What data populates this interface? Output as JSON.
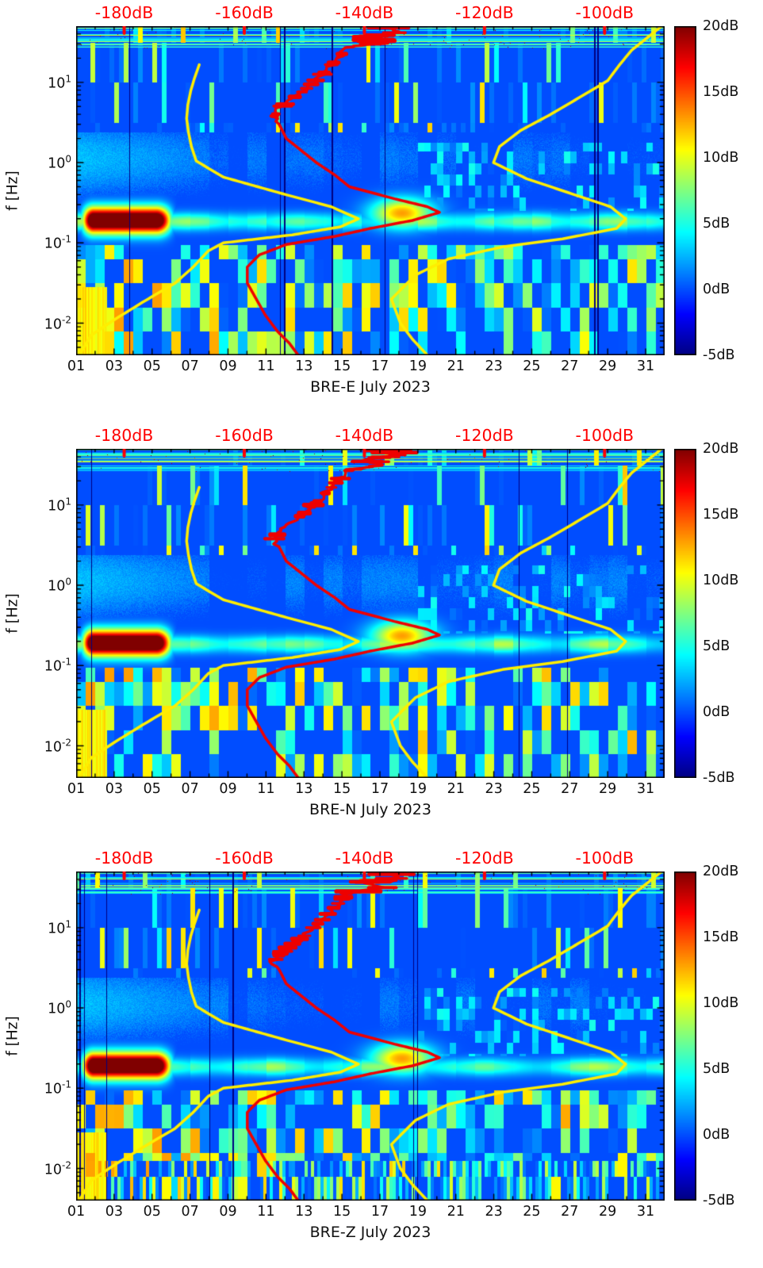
{
  "page": {
    "background": "#ffffff"
  },
  "chart_data": {
    "type": "heatmap",
    "panels": [
      {
        "xlabel": "BRE-E July 2023"
      },
      {
        "xlabel": "BRE-N July 2023"
      },
      {
        "xlabel": "BRE-Z July 2023"
      }
    ],
    "x_axis": {
      "tick_labels": [
        "01",
        "03",
        "05",
        "07",
        "09",
        "11",
        "13",
        "15",
        "17",
        "19",
        "21",
        "23",
        "25",
        "27",
        "29",
        "31"
      ],
      "tick_days": [
        1,
        3,
        5,
        7,
        9,
        11,
        13,
        15,
        17,
        19,
        21,
        23,
        25,
        27,
        29,
        31
      ],
      "domain_days": [
        1,
        32
      ]
    },
    "y_axis": {
      "label": "f [Hz]",
      "scale": "log10",
      "tick_labels": [
        "10^1",
        "10^0",
        "10^-1",
        "10^-2"
      ],
      "tick_log10": [
        1,
        0,
        -1,
        -2
      ],
      "domain_log10": [
        1.7,
        -2.4
      ]
    },
    "top_axis": {
      "color": "#ff0000",
      "tick_labels": [
        "-180dB",
        "-160dB",
        "-140dB",
        "-120dB",
        "-100dB"
      ],
      "tick_db": [
        -180,
        -160,
        -140,
        -120,
        -100
      ],
      "domain_db": [
        -188,
        -90
      ]
    },
    "colorbar": {
      "colormap": "jet",
      "tick_labels": [
        "20dB",
        "15dB",
        "10dB",
        "5dB",
        "0dB",
        "-5dB"
      ],
      "tick_db": [
        20,
        15,
        10,
        5,
        0,
        -5
      ],
      "domain_db": [
        20,
        -5
      ]
    },
    "series": [
      {
        "name": "median-psd",
        "color": "#ee0000",
        "points": [
          [
            -137,
            1.7
          ],
          [
            -134,
            1.63
          ],
          [
            -140,
            1.56
          ],
          [
            -137,
            1.5
          ],
          [
            -143,
            1.43
          ],
          [
            -144,
            1.33
          ],
          [
            -145.5,
            1.22
          ],
          [
            -147,
            1.1
          ],
          [
            -148.5,
            1.0
          ],
          [
            -150,
            0.9
          ],
          [
            -152,
            0.8
          ],
          [
            -154,
            0.68
          ],
          [
            -155,
            0.58
          ],
          [
            -154,
            0.45
          ],
          [
            -153,
            0.3
          ],
          [
            -150.5,
            0.15
          ],
          [
            -148,
            0.0
          ],
          [
            -145,
            -0.15
          ],
          [
            -142.5,
            -0.3
          ],
          [
            -135,
            -0.45
          ],
          [
            -129.5,
            -0.55
          ],
          [
            -127.5,
            -0.62
          ],
          [
            -132,
            -0.72
          ],
          [
            -139,
            -0.82
          ],
          [
            -145,
            -0.92
          ],
          [
            -153,
            -1.02
          ],
          [
            -157.5,
            -1.15
          ],
          [
            -159.5,
            -1.3
          ],
          [
            -159.5,
            -1.5
          ],
          [
            -158,
            -1.7
          ],
          [
            -156.5,
            -1.9
          ],
          [
            -154.5,
            -2.1
          ],
          [
            -152.5,
            -2.25
          ],
          [
            -151,
            -2.4
          ]
        ]
      },
      {
        "name": "low-noise-model",
        "color": "#ffee00",
        "points": [
          [
            -167.5,
            1.22
          ],
          [
            -168.3,
            1.05
          ],
          [
            -168.9,
            0.9
          ],
          [
            -169.4,
            0.72
          ],
          [
            -169.6,
            0.55
          ],
          [
            -169.3,
            0.38
          ],
          [
            -168.8,
            0.2
          ],
          [
            -168.0,
            0.02
          ],
          [
            -163.5,
            -0.18
          ],
          [
            -153,
            -0.4
          ],
          [
            -145.5,
            -0.55
          ],
          [
            -141,
            -0.7
          ],
          [
            -144,
            -0.8
          ],
          [
            -152,
            -0.9
          ],
          [
            -163.5,
            -1.0
          ],
          [
            -166,
            -1.1
          ],
          [
            -168.5,
            -1.3
          ],
          [
            -171.5,
            -1.5
          ],
          [
            -176.5,
            -1.72
          ],
          [
            -181.5,
            -1.95
          ],
          [
            -185.5,
            -2.15
          ],
          [
            -187.5,
            -2.4
          ]
        ]
      },
      {
        "name": "high-noise-model",
        "color": "#ffee00",
        "points": [
          [
            -90.5,
            1.7
          ],
          [
            -93,
            1.55
          ],
          [
            -95.5,
            1.4
          ],
          [
            -97.5,
            1.22
          ],
          [
            -99.5,
            1.02
          ],
          [
            -104,
            0.82
          ],
          [
            -109,
            0.6
          ],
          [
            -114,
            0.4
          ],
          [
            -117.5,
            0.2
          ],
          [
            -118.5,
            0.0
          ],
          [
            -113,
            -0.2
          ],
          [
            -105,
            -0.4
          ],
          [
            -99,
            -0.55
          ],
          [
            -96.5,
            -0.7
          ],
          [
            -98,
            -0.82
          ],
          [
            -107,
            -0.95
          ],
          [
            -117,
            -1.05
          ],
          [
            -126,
            -1.2
          ],
          [
            -131.5,
            -1.4
          ],
          [
            -135.5,
            -1.7
          ],
          [
            -134,
            -2.0
          ],
          [
            -132,
            -2.2
          ],
          [
            -129.5,
            -2.4
          ]
        ]
      }
    ],
    "heatmap": {
      "value_range_db": [
        -5,
        20
      ],
      "features": [
        {
          "name": "primary-microseism-peak",
          "days": [
            1.3,
            5.9
          ],
          "log10f": [
            -0.85,
            -0.58
          ],
          "peak_db": 20
        },
        {
          "name": "secondary-microseism-band",
          "days": [
            1,
            32
          ],
          "log10f_center": -0.73,
          "typical_db": 8
        },
        {
          "name": "storm-noise-patch",
          "days": [
            16.3,
            20.0
          ],
          "log10f": [
            -0.8,
            -0.45
          ],
          "peak_db": 13
        },
        {
          "name": "early-month-broadband-haze",
          "days": [
            1,
            8
          ],
          "log10f": [
            -0.5,
            0.5
          ],
          "typical_db": 5
        },
        {
          "name": "long-period-stripes",
          "days": [
            1,
            32
          ],
          "log10f": [
            -2.4,
            -1.0
          ],
          "db_range": [
            -4,
            12
          ]
        },
        {
          "name": "high-freq-stripes",
          "days": [
            1,
            32
          ],
          "log10f": [
            0.38,
            1.7
          ],
          "db_range": [
            -5,
            12
          ]
        },
        {
          "name": "bottom-left-yellow-wedge",
          "days": [
            1,
            2.6
          ],
          "log10f": [
            -2.4,
            -1.55
          ],
          "typical_db": 10
        }
      ]
    }
  }
}
